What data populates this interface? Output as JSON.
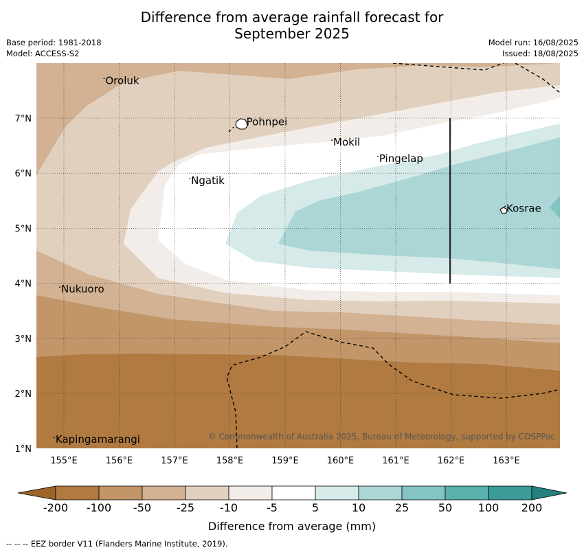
{
  "title_line1": "Difference from average rainfall forecast for",
  "title_line2": "September 2025",
  "meta_left": [
    "Base period: 1981-2018",
    "Model: ACCESS-S2"
  ],
  "meta_right": [
    "Model run: 16/08/2025",
    "Issued: 18/08/2025"
  ],
  "map": {
    "lon_ticks": [
      "155°E",
      "156°E",
      "157°E",
      "158°E",
      "159°E",
      "160°E",
      "161°E",
      "162°E",
      "163°E"
    ],
    "lat_ticks": [
      "7°N",
      "6°N",
      "5°N",
      "4°N",
      "3°N",
      "2°N",
      "1°N"
    ],
    "places": [
      {
        "name": "Oroluk",
        "lon": 155.75,
        "lat": 7.62
      },
      {
        "name": "Pohnpei",
        "lon": 158.3,
        "lat": 6.87
      },
      {
        "name": "Mokil",
        "lon": 159.87,
        "lat": 6.5
      },
      {
        "name": "Pingelap",
        "lon": 160.7,
        "lat": 6.2
      },
      {
        "name": "Ngatik",
        "lon": 157.3,
        "lat": 5.8
      },
      {
        "name": "Kosrae",
        "lon": 163.0,
        "lat": 5.3
      },
      {
        "name": "Nukuoro",
        "lon": 154.95,
        "lat": 3.83
      },
      {
        "name": "Kapingamarangi",
        "lon": 154.85,
        "lat": 1.1
      }
    ],
    "credit": "© Commonwealth of Australia 2025, Bureau of Meteorology, supported by COSPPac"
  },
  "colorbar": {
    "labels": [
      "-200",
      "-100",
      "-50",
      "-25",
      "-10",
      "-5",
      "5",
      "10",
      "25",
      "50",
      "100",
      "200"
    ],
    "colors": [
      "#9c6428",
      "#b07a41",
      "#c29669",
      "#d2b292",
      "#e2d0bf",
      "#f2ede8",
      "#ffffff",
      "#d6eae9",
      "#acd6d6",
      "#84c4c2",
      "#5ab0ad",
      "#3a9b98",
      "#24807d"
    ],
    "axis_label": "Difference from average (mm)"
  },
  "footer": "--  --  -- EEZ border V11 (Flanders Marine Institute, 2019)."
}
